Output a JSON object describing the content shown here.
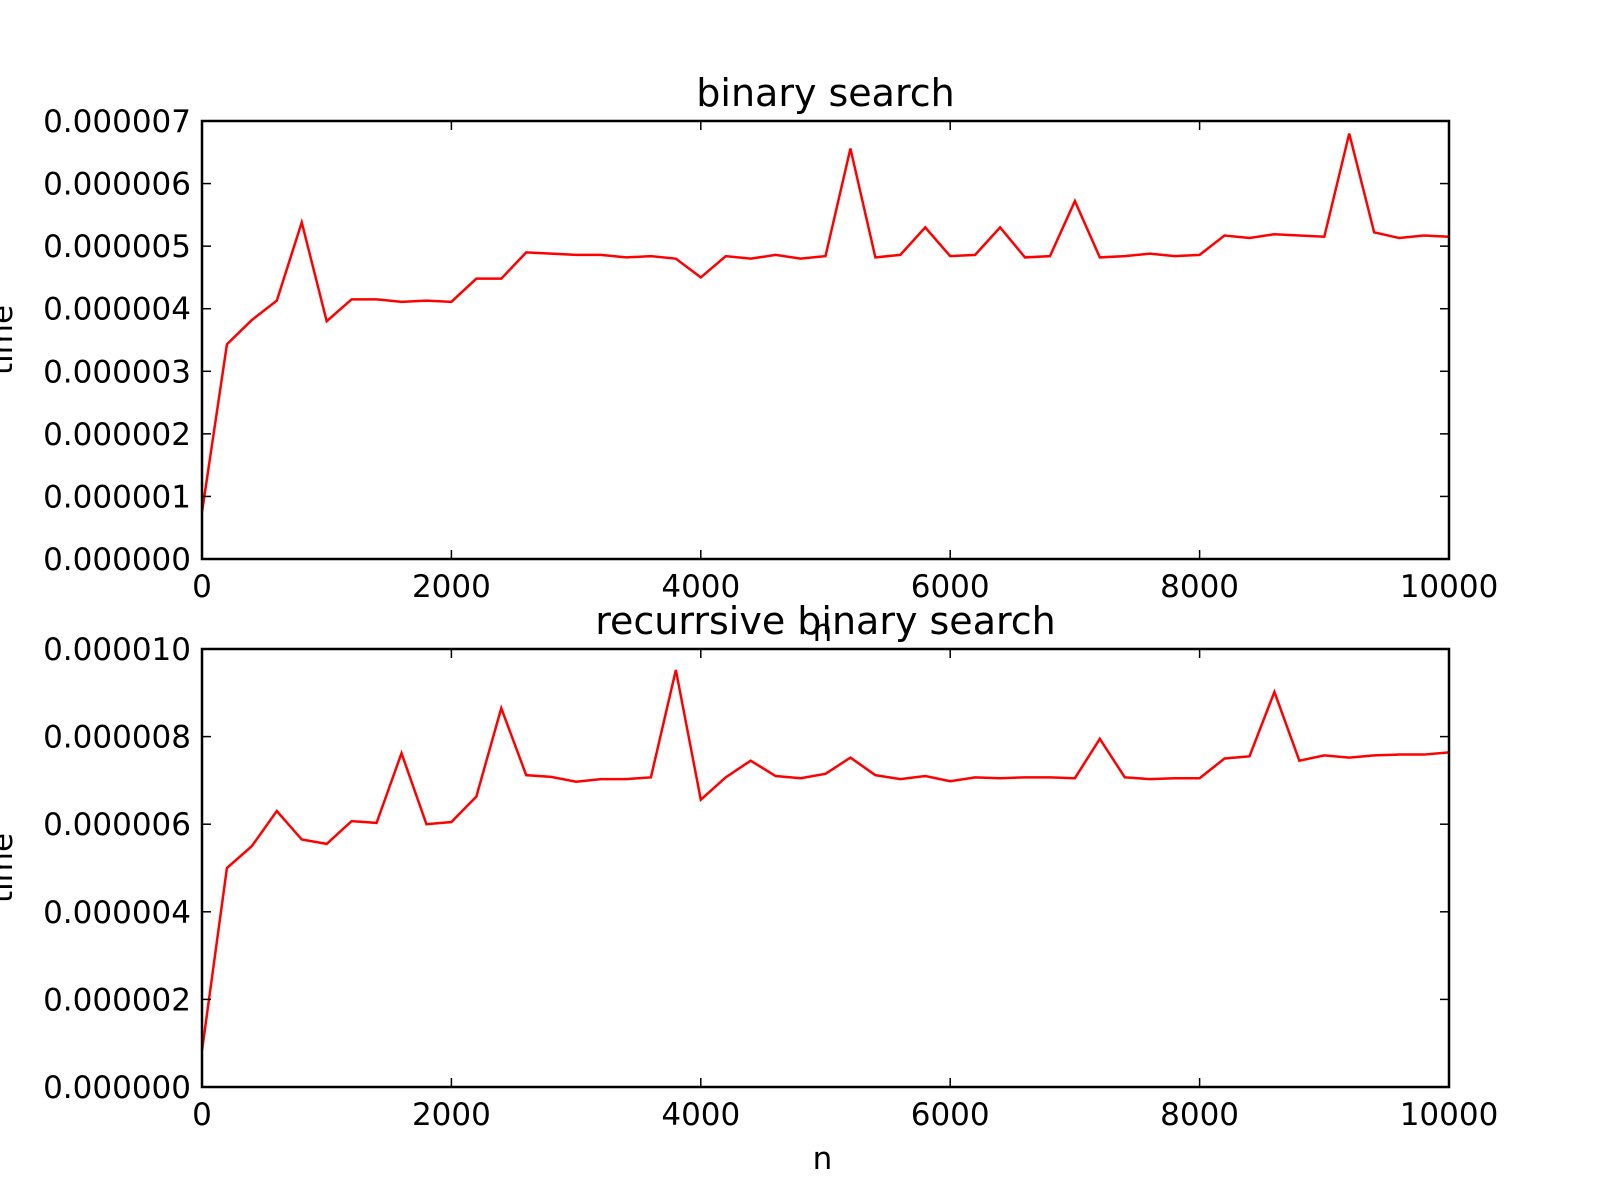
{
  "chart_data": [
    {
      "type": "line",
      "title": "binary search",
      "xlabel": "n",
      "ylabel": "time",
      "xlim": [
        0,
        10000
      ],
      "ylim": [
        0,
        7e-06
      ],
      "xticks": [
        0,
        2000,
        4000,
        6000,
        8000,
        10000
      ],
      "xtick_labels": [
        "0",
        "2000",
        "4000",
        "6000",
        "8000",
        "10000"
      ],
      "yticks": [
        0,
        1e-06,
        2e-06,
        3e-06,
        4e-06,
        5e-06,
        6e-06,
        7e-06
      ],
      "ytick_labels": [
        "0.000000",
        "0.000001",
        "0.000002",
        "0.000003",
        "0.000004",
        "0.000005",
        "0.000006",
        "0.000007"
      ],
      "grid": false,
      "line_color": "#ff0000",
      "x": [
        0,
        200,
        400,
        600,
        800,
        1000,
        1200,
        1400,
        1600,
        1800,
        2000,
        2200,
        2400,
        2600,
        2800,
        3000,
        3200,
        3400,
        3600,
        3800,
        4000,
        4200,
        4400,
        4600,
        4800,
        5000,
        5200,
        5400,
        5600,
        5800,
        6000,
        6200,
        6400,
        6600,
        6800,
        7000,
        7200,
        7400,
        7600,
        7800,
        8000,
        8200,
        8400,
        8600,
        8800,
        9000,
        9200,
        9400,
        9600,
        9800,
        10000
      ],
      "y": [
        7.5e-07,
        3.43e-06,
        3.82e-06,
        4.13e-06,
        5.38e-06,
        3.8e-06,
        4.15e-06,
        4.15e-06,
        4.11e-06,
        4.13e-06,
        4.11e-06,
        4.48e-06,
        4.48e-06,
        4.9e-06,
        4.88e-06,
        4.86e-06,
        4.86e-06,
        4.82e-06,
        4.84e-06,
        4.8e-06,
        4.5e-06,
        4.84e-06,
        4.8e-06,
        4.86e-06,
        4.8e-06,
        4.84e-06,
        6.56e-06,
        4.82e-06,
        4.86e-06,
        5.3e-06,
        4.84e-06,
        4.86e-06,
        5.3e-06,
        4.82e-06,
        4.84e-06,
        5.72e-06,
        4.82e-06,
        4.84e-06,
        4.88e-06,
        4.84e-06,
        4.86e-06,
        5.17e-06,
        5.13e-06,
        5.19e-06,
        5.17e-06,
        5.15e-06,
        6.8e-06,
        5.22e-06,
        5.13e-06,
        5.17e-06,
        5.15e-06
      ]
    },
    {
      "type": "line",
      "title": "recurrsive binary search",
      "xlabel": "n",
      "ylabel": "time",
      "xlim": [
        0,
        10000
      ],
      "ylim": [
        0,
        1e-05
      ],
      "xticks": [
        0,
        2000,
        4000,
        6000,
        8000,
        10000
      ],
      "xtick_labels": [
        "0",
        "2000",
        "4000",
        "6000",
        "8000",
        "10000"
      ],
      "yticks": [
        0,
        2e-06,
        4e-06,
        6e-06,
        8e-06,
        1e-05
      ],
      "ytick_labels": [
        "0.000000",
        "0.000002",
        "0.000004",
        "0.000006",
        "0.000008",
        "0.000010"
      ],
      "grid": false,
      "line_color": "#ff0000",
      "x": [
        0,
        200,
        400,
        600,
        800,
        1000,
        1200,
        1400,
        1600,
        1800,
        2000,
        2200,
        2400,
        2600,
        2800,
        3000,
        3200,
        3400,
        3600,
        3800,
        4000,
        4200,
        4400,
        4600,
        4800,
        5000,
        5200,
        5400,
        5600,
        5800,
        6000,
        6200,
        6400,
        6600,
        6800,
        7000,
        7200,
        7400,
        7600,
        7800,
        8000,
        8200,
        8400,
        8600,
        8800,
        9000,
        9200,
        9400,
        9600,
        9800,
        10000
      ],
      "y": [
        8.3e-07,
        5e-06,
        5.5e-06,
        6.3e-06,
        5.65e-06,
        5.55e-06,
        6.07e-06,
        6.03e-06,
        7.62e-06,
        6e-06,
        6.05e-06,
        6.63e-06,
        8.65e-06,
        7.12e-06,
        7.08e-06,
        6.97e-06,
        7.03e-06,
        7.03e-06,
        7.07e-06,
        9.52e-06,
        6.56e-06,
        7.07e-06,
        7.45e-06,
        7.1e-06,
        7.05e-06,
        7.15e-06,
        7.52e-06,
        7.12e-06,
        7.03e-06,
        7.1e-06,
        6.98e-06,
        7.07e-06,
        7.05e-06,
        7.07e-06,
        7.07e-06,
        7.05e-06,
        7.95e-06,
        7.07e-06,
        7.03e-06,
        7.05e-06,
        7.05e-06,
        7.5e-06,
        7.55e-06,
        9.02e-06,
        7.45e-06,
        7.57e-06,
        7.52e-06,
        7.57e-06,
        7.59e-06,
        7.59e-06,
        7.64e-06
      ]
    }
  ]
}
